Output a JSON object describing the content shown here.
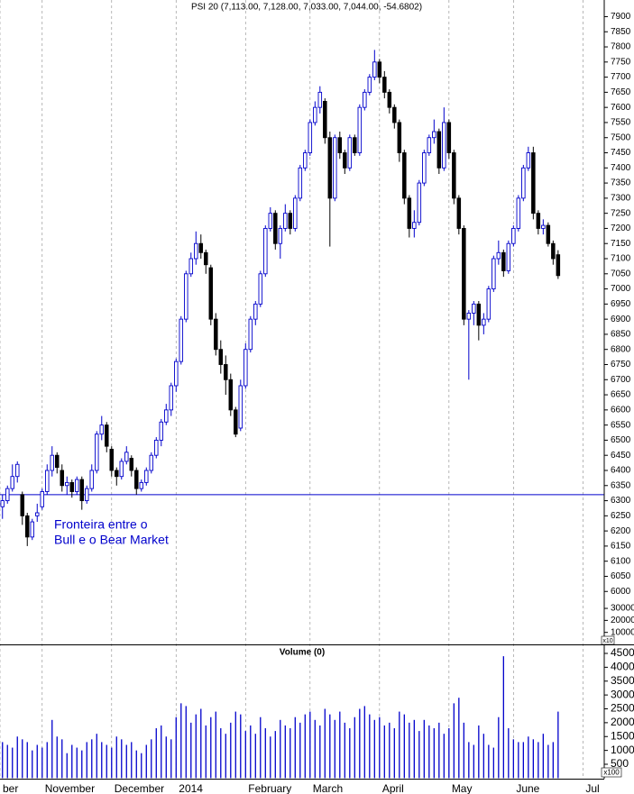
{
  "chart_data": [
    {
      "type": "candlestick",
      "title": "PSI 20 (7,113.00, 7,128.00, 7,033.00, 7,044.00, -54.6802)",
      "open": [
        6280,
        6300,
        6340,
        6380,
        6320,
        6250,
        6180,
        6250,
        6280,
        6330,
        6400,
        6450,
        6400,
        6350,
        6360,
        6330,
        6370,
        6300,
        6340,
        6400,
        6520,
        6550,
        6470,
        6400,
        6380,
        6430,
        6440,
        6400,
        6340,
        6360,
        6400,
        6450,
        6500,
        6560,
        6600,
        6680,
        6760,
        6900,
        7050,
        7100,
        7150,
        7120,
        7070,
        6900,
        6800,
        6750,
        6700,
        6600,
        6540,
        6680,
        6800,
        6900,
        6950,
        7050,
        7200,
        7250,
        7150,
        7200,
        7250,
        7200,
        7300,
        7400,
        7450,
        7550,
        7600,
        7620,
        7500,
        7300,
        7500,
        7450,
        7400,
        7500,
        7450,
        7600,
        7650,
        7700,
        7750,
        7700,
        7650,
        7600,
        7550,
        7450,
        7300,
        7200,
        7220,
        7350,
        7450,
        7500,
        7520,
        7400,
        7550,
        7450,
        7300,
        7200,
        6900,
        6920,
        6950,
        6880,
        6900,
        7000,
        7100,
        7120,
        7060,
        7150,
        7200,
        7300,
        7400,
        7450,
        7250,
        7200,
        7210,
        7150,
        7113
      ],
      "high": [
        6320,
        6350,
        6420,
        6430,
        6330,
        6260,
        6240,
        6290,
        6340,
        6420,
        6480,
        6460,
        6420,
        6380,
        6370,
        6380,
        6380,
        6350,
        6420,
        6530,
        6580,
        6560,
        6480,
        6410,
        6440,
        6480,
        6450,
        6410,
        6370,
        6410,
        6460,
        6510,
        6570,
        6620,
        6690,
        6770,
        6910,
        7060,
        7120,
        7190,
        7180,
        7130,
        7080,
        6920,
        6830,
        6780,
        6720,
        6610,
        6700,
        6820,
        6910,
        6960,
        7060,
        7210,
        7270,
        7260,
        7210,
        7280,
        7260,
        7310,
        7410,
        7460,
        7560,
        7620,
        7670,
        7630,
        7520,
        7510,
        7520,
        7460,
        7510,
        7510,
        7610,
        7660,
        7710,
        7790,
        7760,
        7720,
        7660,
        7610,
        7560,
        7460,
        7310,
        7260,
        7360,
        7460,
        7510,
        7560,
        7530,
        7600,
        7560,
        7460,
        7310,
        7210,
        6930,
        6960,
        6960,
        6920,
        7010,
        7110,
        7160,
        7130,
        7160,
        7210,
        7310,
        7410,
        7470,
        7470,
        7260,
        7230,
        7220,
        7160,
        7128
      ],
      "low": [
        6240,
        6290,
        6330,
        6360,
        6220,
        6150,
        6170,
        6230,
        6270,
        6320,
        6380,
        6390,
        6330,
        6320,
        6310,
        6320,
        6270,
        6290,
        6330,
        6390,
        6500,
        6460,
        6380,
        6350,
        6370,
        6420,
        6380,
        6320,
        6330,
        6350,
        6390,
        6440,
        6480,
        6550,
        6580,
        6660,
        6750,
        6890,
        7040,
        7080,
        7100,
        7050,
        6880,
        6780,
        6720,
        6650,
        6580,
        6510,
        6530,
        6670,
        6790,
        6880,
        6940,
        7040,
        7190,
        7130,
        7100,
        7190,
        7180,
        7190,
        7290,
        7390,
        7440,
        7540,
        7580,
        7480,
        7140,
        7290,
        7430,
        7380,
        7390,
        7440,
        7440,
        7590,
        7640,
        7690,
        7680,
        7630,
        7580,
        7530,
        7420,
        7280,
        7170,
        7170,
        7210,
        7340,
        7440,
        7480,
        7380,
        7390,
        7430,
        7280,
        7180,
        6880,
        6700,
        6880,
        6830,
        6850,
        6890,
        6990,
        7080,
        7040,
        7050,
        7140,
        7190,
        7290,
        7390,
        7230,
        7180,
        7180,
        7140,
        7080,
        7033
      ],
      "close": [
        6300,
        6340,
        6380,
        6420,
        6250,
        6180,
        6230,
        6260,
        6330,
        6400,
        6450,
        6410,
        6350,
        6360,
        6330,
        6370,
        6300,
        6340,
        6400,
        6520,
        6550,
        6480,
        6400,
        6380,
        6430,
        6460,
        6400,
        6340,
        6360,
        6400,
        6450,
        6500,
        6560,
        6600,
        6680,
        6760,
        6900,
        7050,
        7100,
        7150,
        7120,
        7080,
        6900,
        6800,
        6750,
        6700,
        6600,
        6520,
        6680,
        6800,
        6900,
        6950,
        7050,
        7200,
        7250,
        7150,
        7200,
        7250,
        7200,
        7300,
        7400,
        7450,
        7550,
        7600,
        7650,
        7500,
        7300,
        7500,
        7450,
        7400,
        7500,
        7450,
        7600,
        7650,
        7700,
        7750,
        7700,
        7650,
        7600,
        7550,
        7450,
        7300,
        7200,
        7220,
        7350,
        7450,
        7500,
        7520,
        7400,
        7550,
        7450,
        7300,
        7200,
        6900,
        6920,
        6950,
        6880,
        6900,
        7000,
        7100,
        7120,
        7060,
        7150,
        7200,
        7300,
        7400,
        7450,
        7250,
        7200,
        7210,
        7150,
        7100,
        7044
      ],
      "up_color": "#0000cc",
      "down_color": "#000000",
      "xlim": [
        -0.5,
        121.3
      ],
      "xticks": [
        {
          "value": -0.5,
          "label": "ber"
        },
        {
          "value": 8,
          "label": "November"
        },
        {
          "value": 22,
          "label": "December"
        },
        {
          "value": 35,
          "label": "2014"
        },
        {
          "value": 49,
          "label": "February"
        },
        {
          "value": 62,
          "label": "March"
        },
        {
          "value": 76,
          "label": "April"
        },
        {
          "value": 90,
          "label": "May"
        },
        {
          "value": 103,
          "label": "June"
        },
        {
          "value": 117,
          "label": "Jul"
        }
      ],
      "ylim": [
        5825,
        7955
      ],
      "yticks": [
        6000,
        6050,
        6100,
        6150,
        6200,
        6250,
        6300,
        6350,
        6400,
        6450,
        6500,
        6550,
        6600,
        6650,
        6700,
        6750,
        6800,
        6850,
        6900,
        6950,
        7000,
        7050,
        7100,
        7150,
        7200,
        7250,
        7300,
        7350,
        7400,
        7450,
        7500,
        7550,
        7600,
        7650,
        7700,
        7750,
        7800,
        7850,
        7900
      ],
      "y2lim": [
        0,
        537000
      ],
      "y2ticks": [
        10000,
        20000,
        30000
      ],
      "unit_label": "x10",
      "reference_line": {
        "value": 6320,
        "color": "#0000cc",
        "annotation": [
          "Fronteira entre o",
          "Bull e o Bear Market"
        ]
      }
    },
    {
      "type": "bar",
      "title": "Volume (0)",
      "values": [
        1300,
        1200,
        1100,
        1500,
        1400,
        1300,
        1000,
        1200,
        1100,
        1300,
        2100,
        1500,
        1400,
        900,
        1200,
        1100,
        1000,
        1300,
        1400,
        1600,
        1300,
        1200,
        1100,
        1500,
        1400,
        1200,
        1300,
        1000,
        900,
        1200,
        1400,
        1800,
        1900,
        1500,
        1400,
        2200,
        2700,
        2600,
        2000,
        2300,
        2500,
        1900,
        2200,
        2400,
        1800,
        1600,
        2000,
        2400,
        2300,
        1700,
        1900,
        1600,
        2200,
        1800,
        1500,
        1700,
        2100,
        1900,
        1800,
        2200,
        2000,
        2300,
        2400,
        2100,
        1900,
        2500,
        2300,
        2100,
        2400,
        2000,
        1800,
        2200,
        2500,
        2600,
        2300,
        2100,
        2200,
        1900,
        2000,
        1800,
        2400,
        2300,
        2000,
        2100,
        1700,
        2100,
        1900,
        1800,
        2000,
        1600,
        1800,
        2700,
        2900,
        2000,
        1300,
        1200,
        1900,
        1600,
        1200,
        1100,
        2200,
        4400,
        1800,
        1400,
        1300,
        1300,
        1500,
        1400,
        1300,
        1600,
        1200,
        1300,
        2400
      ],
      "color": "#0000cc",
      "xlim": [
        -0.5,
        121.3
      ],
      "ylim": [
        -20,
        4825
      ],
      "yticks": [
        500,
        1000,
        1500,
        2000,
        2500,
        3000,
        3500,
        4000,
        4500
      ],
      "unit_label": "x100"
    }
  ]
}
